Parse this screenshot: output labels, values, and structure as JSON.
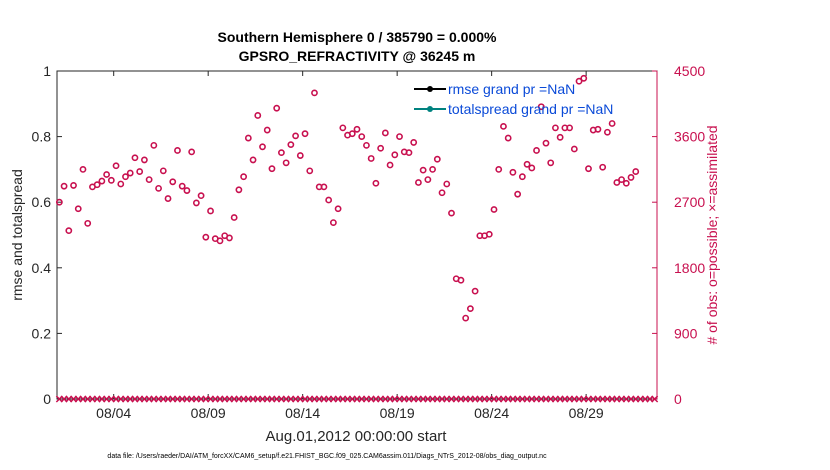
{
  "chart_data": {
    "type": "scatter",
    "title_line1": "Southern Hemisphere 0 / 385790 = 0.000%",
    "title_line2": "GPSRO_REFRACTIVITY @ 36245 m",
    "xlabel": "Aug.01,2012 00:00:00 start",
    "ylabel_left": "rmse and totalspread",
    "ylabel_right": "# of obs: o=possible; ×=assimilated",
    "xlim": [
      0,
      31.75
    ],
    "ylim_left": [
      0,
      1
    ],
    "ylim_right": [
      0,
      4500
    ],
    "x_ticks": [
      {
        "x": 3,
        "label": "08/04"
      },
      {
        "x": 8,
        "label": "08/09"
      },
      {
        "x": 13,
        "label": "08/14"
      },
      {
        "x": 18,
        "label": "08/19"
      },
      {
        "x": 23,
        "label": "08/24"
      },
      {
        "x": 28,
        "label": "08/29"
      }
    ],
    "y_ticks_left": [
      "0",
      "0.2",
      "0.4",
      "0.6",
      "0.8",
      "1"
    ],
    "y_ticks_right": [
      "0",
      "900",
      "1800",
      "2700",
      "3600",
      "4500"
    ],
    "legend": [
      {
        "label": "rmse grand pr =NaN",
        "color": "#000000"
      },
      {
        "label": "totalspread grand pr =NaN",
        "color": "#00827f"
      }
    ],
    "series": [
      {
        "name": "rmse",
        "values": []
      },
      {
        "name": "totalspread",
        "values": []
      },
      {
        "name": "obs possible",
        "axis": "right",
        "marker": "o",
        "color": "#c8104f",
        "x_start": 0.125,
        "x_step": 0.25,
        "values": [
          2700,
          2920,
          2310,
          2930,
          2610,
          3150,
          2410,
          2910,
          2940,
          2990,
          3080,
          3000,
          3200,
          2950,
          3050,
          3100,
          3310,
          3120,
          3280,
          3010,
          3480,
          2890,
          3130,
          2750,
          2980,
          3410,
          2920,
          2860,
          3390,
          2690,
          2790,
          2220,
          2580,
          2200,
          2170,
          2240,
          2210,
          2490,
          2870,
          3050,
          3580,
          3280,
          3890,
          3460,
          3690,
          3160,
          3990,
          3380,
          3240,
          3490,
          3610,
          3340,
          3640,
          3130,
          4200,
          2910,
          2910,
          2730,
          2420,
          2610,
          3720,
          3620,
          3640,
          3700,
          3600,
          3480,
          3300,
          2960,
          3440,
          3650,
          3210,
          3350,
          3600,
          3390,
          3380,
          3520,
          2970,
          3140,
          3010,
          3150,
          3290,
          2830,
          2950,
          2550,
          1650,
          1630,
          1110,
          1240,
          1480,
          2240,
          2240,
          2260,
          2600,
          3150,
          3740,
          3580,
          3110,
          2810,
          3050,
          3220,
          3170,
          3410,
          4010,
          3510,
          3240,
          3720,
          3590,
          3720,
          3720,
          3430,
          4360,
          4400,
          3160,
          3690,
          3700,
          3180,
          3660,
          3780,
          2970,
          3010,
          2960,
          3040,
          3120
        ]
      },
      {
        "name": "obs assimilated",
        "axis": "right",
        "marker": "x",
        "color": "#c8104f",
        "x_start": 0.125,
        "x_step": 0.25,
        "values": [
          0,
          0,
          0,
          0,
          0,
          0,
          0,
          0,
          0,
          0,
          0,
          0,
          0,
          0,
          0,
          0,
          0,
          0,
          0,
          0,
          0,
          0,
          0,
          0,
          0,
          0,
          0,
          0,
          0,
          0,
          0,
          0,
          0,
          0,
          0,
          0,
          0,
          0,
          0,
          0,
          0,
          0,
          0,
          0,
          0,
          0,
          0,
          0,
          0,
          0,
          0,
          0,
          0,
          0,
          0,
          0,
          0,
          0,
          0,
          0,
          0,
          0,
          0,
          0,
          0,
          0,
          0,
          0,
          0,
          0,
          0,
          0,
          0,
          0,
          0,
          0,
          0,
          0,
          0,
          0,
          0,
          0,
          0,
          0,
          0,
          0,
          0,
          0,
          0,
          0,
          0,
          0,
          0,
          0,
          0,
          0,
          0,
          0,
          0,
          0,
          0,
          0,
          0,
          0,
          0,
          0,
          0,
          0,
          0,
          0,
          0,
          0,
          0,
          0,
          0,
          0,
          0,
          0,
          0,
          0,
          0,
          0,
          0,
          0,
          0,
          0,
          0
        ]
      }
    ]
  },
  "footer": "data file: /Users/raeder/DAI/ATM_forcXX/CAM6_setup/f.e21.FHIST_BGC.f09_025.CAM6assim.011/Diags_NTrS_2012-08/obs_diag_output.nc"
}
